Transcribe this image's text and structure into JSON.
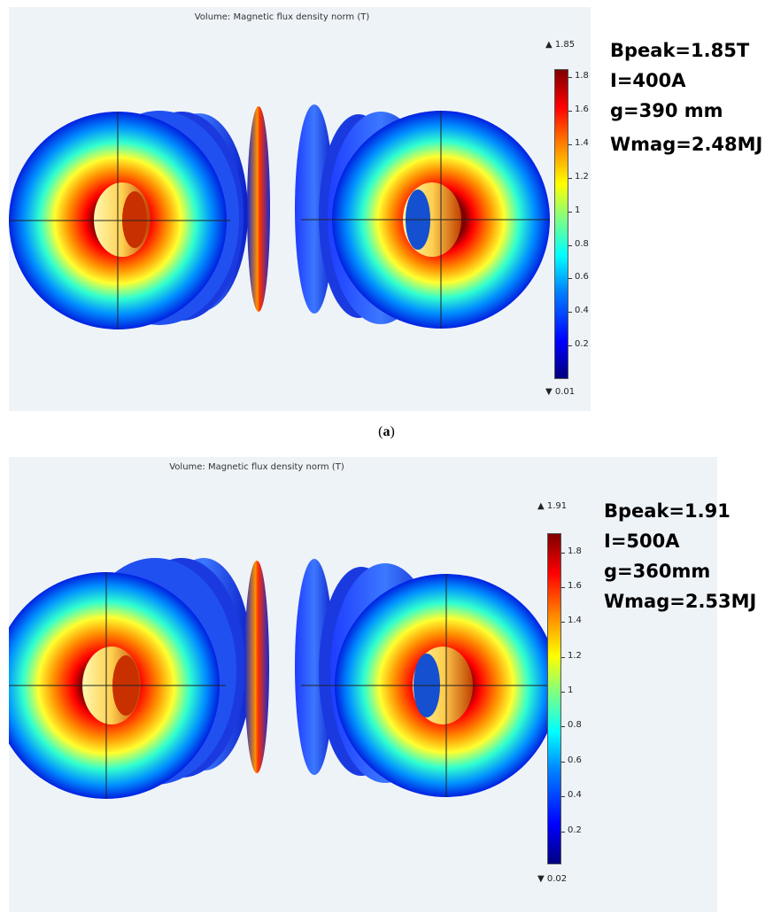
{
  "figure_a": {
    "plot_title": "Volume: Magnetic flux density norm (T)",
    "colorbar": {
      "max_label": "▲ 1.85",
      "min_label": "▼ 0.01",
      "max": 1.85,
      "min": 0.01,
      "ticks": [
        "1.8",
        "1.6",
        "1.4",
        "1.2",
        "1",
        "0.8",
        "0.6",
        "0.4",
        "0.2"
      ]
    },
    "params": [
      "Bpeak=1.85T",
      "I=400A",
      "g=390 mm",
      "Wmag=2.48MJ"
    ]
  },
  "caption": {
    "open": "(",
    "label": "a",
    "close": ")"
  },
  "figure_b": {
    "plot_title": "Volume: Magnetic flux density norm (T)",
    "colorbar": {
      "max_label": "▲ 1.91",
      "min_label": "▼ 0.02",
      "max": 1.91,
      "min": 0.02,
      "ticks": [
        "1.8",
        "1.6",
        "1.4",
        "1.2",
        "1",
        "0.8",
        "0.6",
        "0.4",
        "0.2"
      ]
    },
    "params": [
      "Bpeak=1.91",
      "I=500A",
      "g=360mm",
      "Wmag=2.53MJ"
    ]
  },
  "colors": {
    "panel_background": "#eef3f8",
    "coil_low": "#0000ff",
    "coil_high": "#ff0000"
  }
}
